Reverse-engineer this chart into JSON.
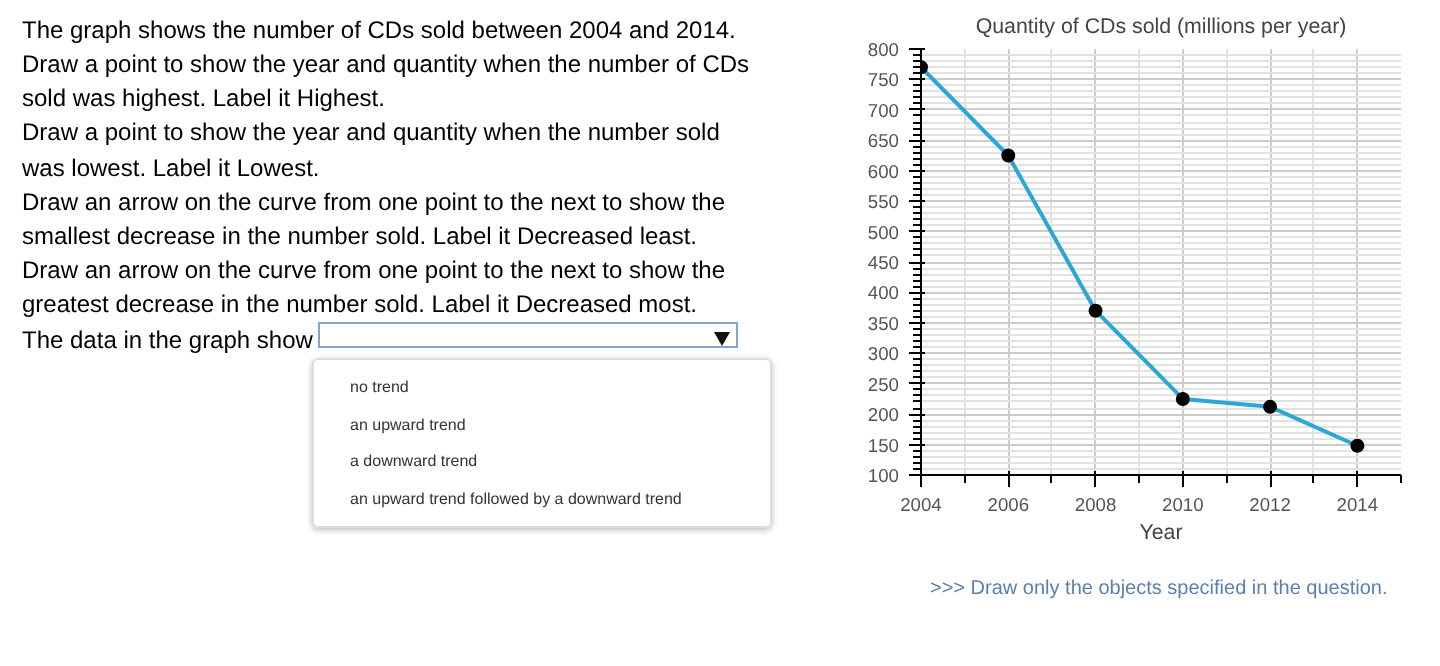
{
  "chart_data": {
    "type": "line",
    "title": "Quantity of CDs sold (millions per year)",
    "xlabel": "Year",
    "x": [
      2004,
      2006,
      2008,
      2010,
      2012,
      2014
    ],
    "series": [
      {
        "color": "#2aa7d6",
        "values": [
          770,
          625,
          370,
          225,
          212,
          148
        ]
      }
    ],
    "xlim": [
      2004,
      2015
    ],
    "xticks": [
      2004,
      2006,
      2008,
      2010,
      2012,
      2014
    ],
    "ylim": [
      100,
      800
    ],
    "yticks": [
      100,
      150,
      200,
      250,
      300,
      350,
      400,
      450,
      500,
      550,
      600,
      650,
      700,
      750,
      800
    ],
    "grid": true,
    "marker": "circle",
    "line_style": "solid",
    "annotations": [
      "The graph shows the number of CDs sold between 2004 and 2014.",
      "Draw a point to show the year and quantity when the number of CDs sold was highest. Label it Highest.",
      "Draw a point to show the year and quantity when the number sold was lowest. Label it Lowest.",
      "Draw an arrow on the curve from one point to the next to show the smallest decrease in the number sold. Label it Decreased least.",
      "Draw an arrow on the curve from one point to the next to show the greatest decrease in the number sold. Label it Decreased most.",
      "The data in the graph show",
      "no trend",
      "an upward trend",
      "a downward trend",
      "an upward trend followed by a downward trend",
      ">>> Draw only the objects specified in the question."
    ]
  }
}
